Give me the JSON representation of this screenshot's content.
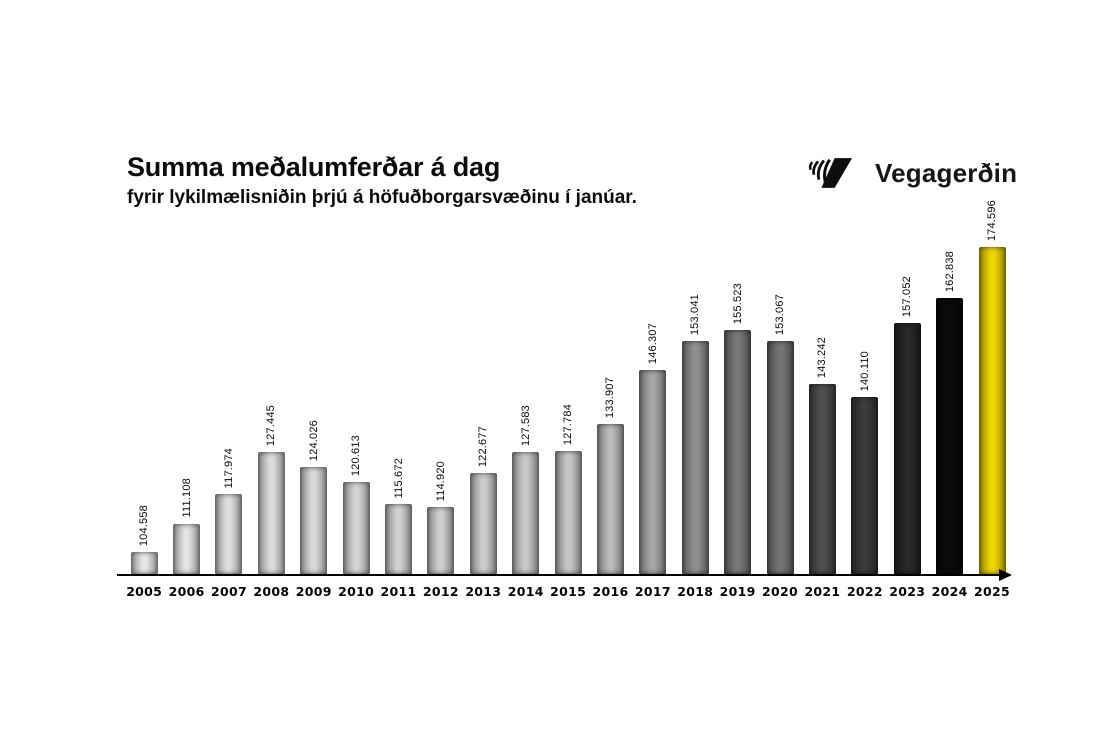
{
  "header": {
    "title": "Summa meðalumferðar á dag",
    "subtitle": "fyrir lykilmælisniðin þrjú á höfuðborgarsvæðinu í janúar."
  },
  "logo": {
    "text": "Vegagerðin",
    "color": "#111111"
  },
  "chart_data": {
    "type": "bar",
    "title": "Summa meðalumferðar á dag",
    "subtitle": "fyrir lykilmælisniðin þrjú á höfuðborgarsvæðinu í janúar.",
    "categories": [
      "2005",
      "2006",
      "2007",
      "2008",
      "2009",
      "2010",
      "2011",
      "2012",
      "2013",
      "2014",
      "2015",
      "2016",
      "2017",
      "2018",
      "2019",
      "2020",
      "2021",
      "2022",
      "2023",
      "2024",
      "2025"
    ],
    "values": [
      104558,
      111108,
      117974,
      127445,
      124026,
      120613,
      115672,
      114920,
      122677,
      127583,
      127784,
      133907,
      146307,
      153041,
      155523,
      153067,
      143242,
      140110,
      157052,
      162838,
      174596
    ],
    "value_labels": [
      "104.558",
      "111.108",
      "117.974",
      "127.445",
      "124.026",
      "120.613",
      "115.672",
      "114.920",
      "122.677",
      "127.583",
      "127.784",
      "133.907",
      "146.307",
      "153.041",
      "155.523",
      "153.067",
      "143.242",
      "140.110",
      "157.052",
      "162.838",
      "174.596"
    ],
    "bar_colors": [
      "#e7e7e7",
      "#e3e3e3",
      "#dfdfdf",
      "#dbdbdb",
      "#d8d8d8",
      "#d4d4d4",
      "#d1d1d1",
      "#cecece",
      "#cbcbcb",
      "#c8c8c8",
      "#c5c5c5",
      "#bcbcbc",
      "#a6a6a6",
      "#8f8f8f",
      "#787878",
      "#747474",
      "#4e4e4e",
      "#3b3b3b",
      "#282828",
      "#0a0a0a",
      "#eed600"
    ],
    "highlight_year": "2025",
    "highlight_color": "#eed600",
    "xlabel": "",
    "ylabel": "",
    "axis": {
      "baseline_value": 100000,
      "ylim": [
        100000,
        174596
      ],
      "x_axis_arrow": true,
      "grid": false,
      "value_label_rotation_deg": 90
    },
    "legend": null
  }
}
